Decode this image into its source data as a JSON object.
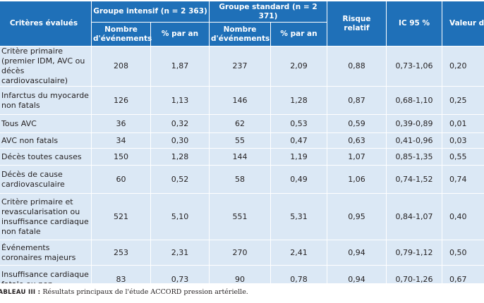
{
  "header": {
    "criteria": "Critères évalués",
    "intensive_group": "Groupe intensif (n = 2 363)",
    "standard_group": "Groupe standard (n = 2 371)",
    "relative_risk": "Risque relatif",
    "ci95": "IC 95 %",
    "p_value": "Valeur de p",
    "events_count": "Nombre d'événements",
    "percent_per_year": "% par an"
  },
  "rows": [
    {
      "criterion": "Critère primaire (premier IDM, AVC ou décès cardiovasculaire)",
      "int_n": "208",
      "int_pct": "1,87",
      "std_n": "237",
      "std_pct": "2,09",
      "rr": "0,88",
      "ci": "0,73-1,06",
      "p": "0,20"
    },
    {
      "criterion": "Infarctus du myocarde non fatals",
      "int_n": "126",
      "int_pct": "1,13",
      "std_n": "146",
      "std_pct": "1,28",
      "rr": "0,87",
      "ci": "0,68-1,10",
      "p": "0,25"
    },
    {
      "criterion": "Tous AVC",
      "int_n": "36",
      "int_pct": "0,32",
      "std_n": "62",
      "std_pct": "0,53",
      "rr": "0,59",
      "ci": "0,39-0,89",
      "p": "0,01"
    },
    {
      "criterion": "AVC non fatals",
      "int_n": "34",
      "int_pct": "0,30",
      "std_n": "55",
      "std_pct": "0,47",
      "rr": "0,63",
      "ci": "0,41-0,96",
      "p": "0,03"
    },
    {
      "criterion": "Décès toutes causes",
      "int_n": "150",
      "int_pct": "1,28",
      "std_n": "144",
      "std_pct": "1,19",
      "rr": "1,07",
      "ci": "0,85-1,35",
      "p": "0,55"
    },
    {
      "criterion": "Décès de cause cardiovasculaire",
      "int_n": "60",
      "int_pct": "0,52",
      "std_n": "58",
      "std_pct": "0,49",
      "rr": "1,06",
      "ci": "0,74-1,52",
      "p": "0,74"
    },
    {
      "criterion": "Critère primaire et revascularisation ou insuffisance cardiaque non fatale",
      "int_n": "521",
      "int_pct": "5,10",
      "std_n": "551",
      "std_pct": "5,31",
      "rr": "0,95",
      "ci": "0,84-1,07",
      "p": "0,40"
    },
    {
      "criterion": "Événements coronaires majeurs",
      "int_n": "253",
      "int_pct": "2,31",
      "std_n": "270",
      "std_pct": "2,41",
      "rr": "0,94",
      "ci": "0,79-1,12",
      "p": "0,50"
    },
    {
      "criterion": "Insuffisance cardiaque fatale ou non",
      "int_n": "83",
      "int_pct": "0,73",
      "std_n": "90",
      "std_pct": "0,78",
      "rr": "0,94",
      "ci": "0,70-1,26",
      "p": "0,67"
    }
  ],
  "caption": {
    "label": "TABLEAU III :",
    "text": " Résultats principaux de l'étude ACCORD pression artérielle."
  }
}
